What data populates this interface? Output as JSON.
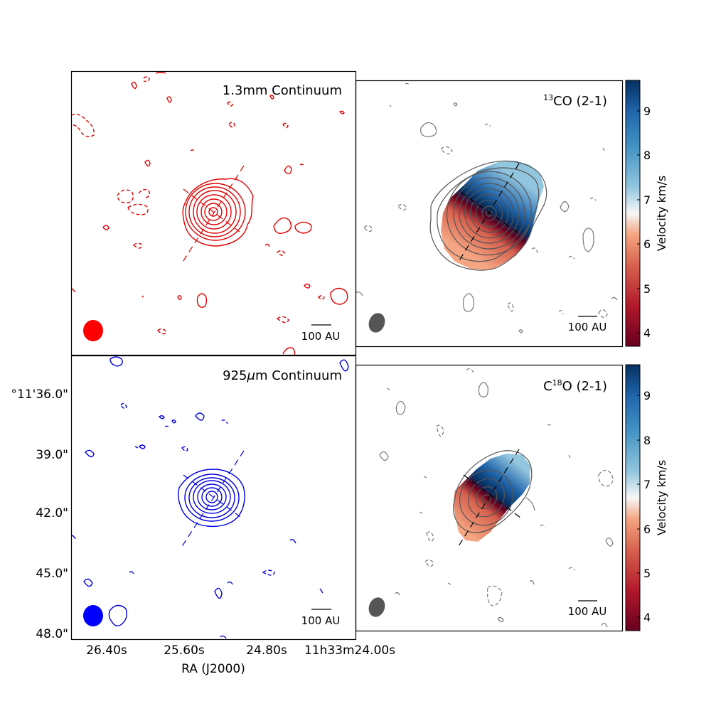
{
  "panels": {
    "continuum_13mm": {
      "title": "1.3mm Continuum",
      "scalebar": "100 AU",
      "color": "#e00000",
      "beam_color": "#ff0000"
    },
    "continuum_925um": {
      "title_prefix": "925",
      "title_mu": "μ",
      "title_suffix": "m Continuum",
      "scalebar": "100 AU",
      "color": "#0000e0",
      "beam_color": "#0000ff"
    },
    "co13": {
      "title_sup": "13",
      "title_main": "CO (2-1)",
      "scalebar": "100 AU",
      "colorbar_label": "Velocity km/s",
      "colorbar_ticks": [
        "9",
        "8",
        "7",
        "6",
        "5",
        "4"
      ]
    },
    "c18o": {
      "title_c": "C",
      "title_sup": "18",
      "title_main": "O (2-1)",
      "scalebar": "100 AU",
      "colorbar_label": "Velocity km/s",
      "colorbar_ticks": [
        "9",
        "8",
        "7",
        "6",
        "5",
        "4"
      ]
    }
  },
  "axes": {
    "dec_ticks": [
      "°11'36.0\"",
      "39.0\"",
      "42.0\"",
      "45.0\"",
      "48.0\""
    ],
    "ra_ticks": [
      "26.40s",
      "25.60s",
      "24.80s",
      "11h33m24.00s"
    ],
    "xlabel": "RA (J2000)"
  },
  "colors": {
    "red_end": "#67001f",
    "blue_end": "#053061",
    "mid": "#f7f7f7",
    "contour_gray": "#777777"
  }
}
